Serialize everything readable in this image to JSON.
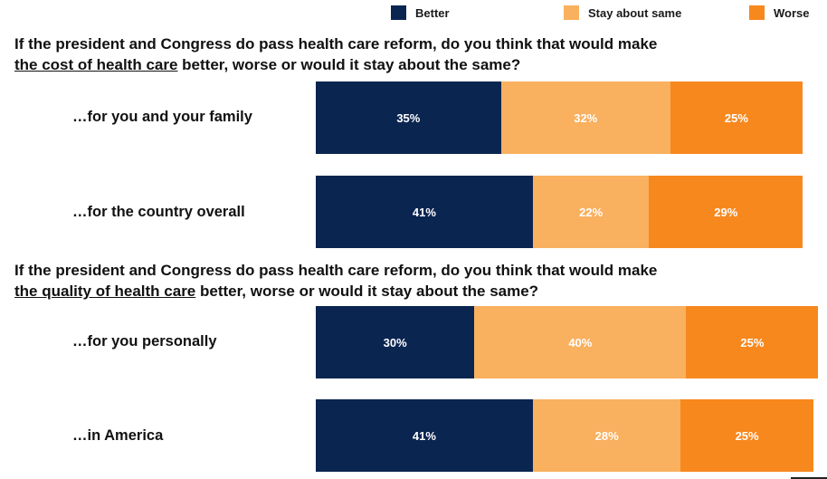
{
  "legend": [
    {
      "label": "Better",
      "color": "#0b2551"
    },
    {
      "label": "Stay about same",
      "color": "#f9b05f"
    },
    {
      "label": "Worse",
      "color": "#f7881e"
    }
  ],
  "questions": [
    {
      "line1": "If the president and Congress do pass health care reform, do you think that would make",
      "underlined": "the cost of health care",
      "rest": " better, worse or would it stay about the same?"
    },
    {
      "line1": "If the president and Congress do pass health care reform, do you think that would make",
      "underlined": "the quality of health care",
      "rest": " better, worse or would it stay about the same?"
    }
  ],
  "chart_data": {
    "type": "bar",
    "stacked": true,
    "orientation": "horizontal",
    "categories": [
      "…for you and your family",
      "…for the country overall",
      "…for you personally",
      "…in America"
    ],
    "series": [
      {
        "name": "Better",
        "values": [
          35,
          41,
          30,
          41
        ],
        "labels": [
          "35%",
          "41%",
          "30%",
          "41%"
        ]
      },
      {
        "name": "Stay about same",
        "values": [
          32,
          22,
          40,
          28
        ],
        "labels": [
          "32%",
          "22%",
          "40%",
          "28%"
        ]
      },
      {
        "name": "Worse",
        "values": [
          25,
          29,
          25,
          25
        ],
        "labels": [
          "25%",
          "29%",
          "25%",
          "25%"
        ]
      }
    ]
  }
}
